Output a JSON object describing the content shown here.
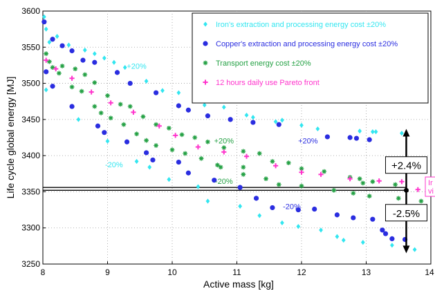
{
  "chart_data": {
    "type": "scatter",
    "xlabel": "Active mass [kg]",
    "ylabel": "Life cycle global energy [MJ]",
    "xlim": [
      8,
      14
    ],
    "ylim": [
      3250,
      3600
    ],
    "x_ticks": [
      "8",
      "9",
      "10",
      "11",
      "12",
      "13",
      "14"
    ],
    "y_ticks": [
      "3250",
      "3300",
      "3350",
      "3400",
      "3450",
      "3500",
      "3550",
      "3600"
    ],
    "grid": "on",
    "legend_placement": "top-right",
    "series": [
      {
        "name": "Iron's extraction and processing energy cost ±20%",
        "color": "#33e6f0",
        "marker": "diamond",
        "points": [
          [
            8.02,
            3592
          ],
          [
            8.05,
            3575
          ],
          [
            8.1,
            3557
          ],
          [
            8.22,
            3565
          ],
          [
            8.4,
            3553
          ],
          [
            8.65,
            3546
          ],
          [
            8.8,
            3541
          ],
          [
            8.95,
            3535
          ],
          [
            9.1,
            3529
          ],
          [
            9.27,
            3522
          ],
          [
            9.6,
            3503
          ],
          [
            9.85,
            3490
          ],
          [
            10.1,
            3487
          ],
          [
            10.5,
            3470
          ],
          [
            10.8,
            3467
          ],
          [
            11.15,
            3456
          ],
          [
            11.25,
            3453
          ],
          [
            11.6,
            3447
          ],
          [
            11.7,
            3449
          ],
          [
            12.0,
            3442
          ],
          [
            12.25,
            3437
          ],
          [
            12.9,
            3434
          ],
          [
            13.1,
            3433
          ],
          [
            13.15,
            3433
          ],
          [
            13.55,
            3431
          ],
          [
            8.05,
            3491
          ],
          [
            8.55,
            3450
          ],
          [
            9.0,
            3420
          ],
          [
            9.45,
            3392
          ],
          [
            9.65,
            3384
          ],
          [
            9.95,
            3367
          ],
          [
            10.4,
            3357
          ],
          [
            10.55,
            3337
          ],
          [
            11.05,
            3330
          ],
          [
            11.35,
            3317
          ],
          [
            11.7,
            3307
          ],
          [
            11.95,
            3302
          ],
          [
            12.3,
            3297
          ],
          [
            12.55,
            3288
          ],
          [
            12.65,
            3283
          ],
          [
            12.95,
            3280
          ],
          [
            13.4,
            3276
          ],
          [
            13.75,
            3270
          ]
        ]
      },
      {
        "name": "Copper's extraction and processing energy cost ±20%",
        "color": "#2a2de0",
        "marker": "circle",
        "points": [
          [
            8.02,
            3585
          ],
          [
            8.15,
            3561
          ],
          [
            8.3,
            3552
          ],
          [
            8.45,
            3545
          ],
          [
            8.62,
            3532
          ],
          [
            8.8,
            3529
          ],
          [
            9.15,
            3515
          ],
          [
            9.35,
            3500
          ],
          [
            9.75,
            3487
          ],
          [
            10.1,
            3469
          ],
          [
            10.25,
            3463
          ],
          [
            10.55,
            3455
          ],
          [
            10.9,
            3450
          ],
          [
            11.25,
            3446
          ],
          [
            11.65,
            3443
          ],
          [
            12.4,
            3426
          ],
          [
            12.75,
            3425
          ],
          [
            12.85,
            3424
          ],
          [
            13.05,
            3422
          ],
          [
            8.05,
            3516
          ],
          [
            8.15,
            3496
          ],
          [
            8.45,
            3468
          ],
          [
            8.85,
            3441
          ],
          [
            8.95,
            3432
          ],
          [
            9.3,
            3419
          ],
          [
            9.6,
            3404
          ],
          [
            9.7,
            3394
          ],
          [
            10.1,
            3391
          ],
          [
            10.25,
            3376
          ],
          [
            10.65,
            3366
          ],
          [
            11.05,
            3356
          ],
          [
            11.3,
            3341
          ],
          [
            11.55,
            3328
          ],
          [
            11.95,
            3325
          ],
          [
            12.2,
            3326
          ],
          [
            12.55,
            3318
          ],
          [
            12.8,
            3314
          ],
          [
            13.1,
            3312
          ],
          [
            13.25,
            3297
          ],
          [
            13.3,
            3292
          ],
          [
            13.4,
            3285
          ],
          [
            13.6,
            3284
          ]
        ]
      },
      {
        "name": "Transport energy cost ±20%",
        "color": "#23a043",
        "marker": "star",
        "points": [
          [
            8.05,
            3541
          ],
          [
            8.15,
            3522
          ],
          [
            8.25,
            3514
          ],
          [
            8.45,
            3495
          ],
          [
            8.6,
            3489
          ],
          [
            8.8,
            3468
          ],
          [
            8.9,
            3459
          ],
          [
            9.05,
            3452
          ],
          [
            9.25,
            3443
          ],
          [
            9.45,
            3430
          ],
          [
            9.6,
            3421
          ],
          [
            9.75,
            3414
          ],
          [
            10.0,
            3408
          ],
          [
            10.2,
            3403
          ],
          [
            10.45,
            3396
          ],
          [
            10.7,
            3387
          ],
          [
            11.1,
            3374
          ],
          [
            11.45,
            3368
          ],
          [
            11.65,
            3360
          ],
          [
            12.0,
            3358
          ],
          [
            12.5,
            3352
          ],
          [
            12.8,
            3348
          ],
          [
            13.05,
            3344
          ],
          [
            13.5,
            3341
          ],
          [
            13.85,
            3337
          ],
          [
            8.1,
            3530
          ],
          [
            8.3,
            3524
          ],
          [
            8.5,
            3520
          ],
          [
            8.65,
            3512
          ],
          [
            8.8,
            3501
          ],
          [
            9.0,
            3483
          ],
          [
            9.2,
            3471
          ],
          [
            9.35,
            3468
          ],
          [
            9.55,
            3454
          ],
          [
            9.75,
            3443
          ],
          [
            9.95,
            3438
          ],
          [
            10.15,
            3429
          ],
          [
            10.35,
            3425
          ],
          [
            10.55,
            3419
          ],
          [
            10.8,
            3411
          ],
          [
            11.1,
            3406
          ],
          [
            11.35,
            3403
          ],
          [
            11.55,
            3392
          ],
          [
            11.8,
            3390
          ],
          [
            12.0,
            3382
          ],
          [
            12.35,
            3378
          ],
          [
            12.75,
            3370
          ],
          [
            12.9,
            3368
          ],
          [
            13.1,
            3364
          ],
          [
            13.45,
            3360
          ],
          [
            10.75,
            3384
          ],
          [
            11.1,
            3384
          ],
          [
            12.95,
            3362
          ]
        ]
      },
      {
        "name": "12 hours daily use Pareto front",
        "color": "#ff33cc",
        "marker": "plus",
        "points": [
          [
            8.05,
            3532
          ],
          [
            8.2,
            3520
          ],
          [
            8.45,
            3507
          ],
          [
            8.75,
            3488
          ],
          [
            9.05,
            3473
          ],
          [
            9.4,
            3460
          ],
          [
            9.8,
            3441
          ],
          [
            10.05,
            3428
          ],
          [
            10.4,
            3412
          ],
          [
            10.8,
            3405
          ],
          [
            11.15,
            3399
          ],
          [
            11.6,
            3386
          ],
          [
            12.0,
            3377
          ],
          [
            12.3,
            3374
          ],
          [
            12.75,
            3368
          ],
          [
            13.2,
            3365
          ],
          [
            13.55,
            3364
          ],
          [
            13.8,
            3353
          ],
          [
            13.95,
            3352
          ]
        ]
      }
    ],
    "annotations": [
      {
        "text": "+20%",
        "x": 9.45,
        "y": 3520,
        "color": "#33e6f0"
      },
      {
        "text": "-20%",
        "x": 9.1,
        "y": 3384,
        "color": "#33e6f0"
      },
      {
        "text": "+20%",
        "x": 12.1,
        "y": 3417,
        "color": "#2a2de0"
      },
      {
        "text": "-20%",
        "x": 11.85,
        "y": 3326,
        "color": "#2a2de0"
      },
      {
        "text": "+20%",
        "x": 10.8,
        "y": 3417,
        "color": "#23a043"
      },
      {
        "text": "-20%",
        "x": 10.8,
        "y": 3361,
        "color": "#23a043"
      }
    ],
    "reference_lines": [
      {
        "y": 3356,
        "x_from": 8,
        "x_to": 13.62
      },
      {
        "y": 3352,
        "x_from": 8,
        "x_to": 13.62
      }
    ],
    "arrows": [
      {
        "x": 13.62,
        "y_from": 3352,
        "y_to": 3437,
        "label": "+2.4%",
        "label_y": 3387
      },
      {
        "x": 13.62,
        "y_from": 3352,
        "y_to": 3265,
        "label": "-2.5%",
        "label_y": 3321
      }
    ],
    "edge_label": {
      "text": "Ir\nvi",
      "color": "#ff33cc"
    }
  }
}
